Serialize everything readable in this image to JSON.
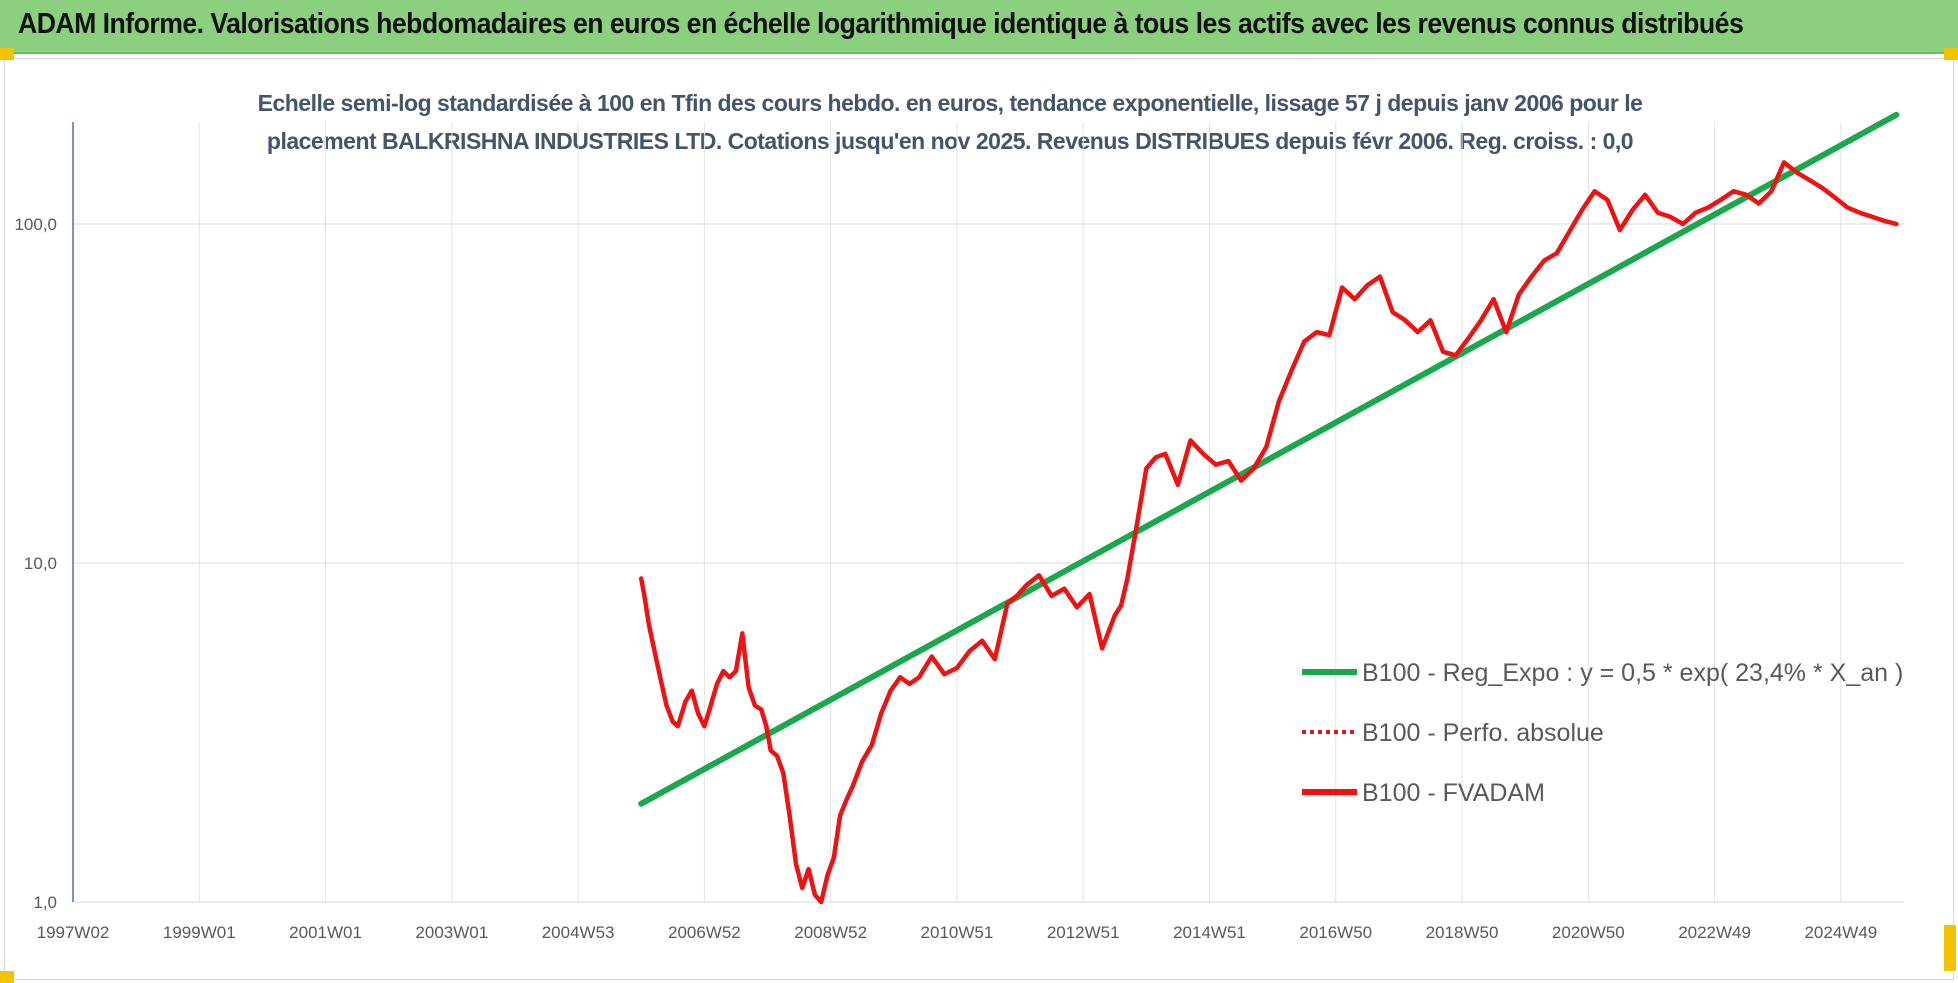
{
  "banner": {
    "title": "ADAM Informe. Valorisations hebdomadaires en euros en échelle logarithmique identique à tous les actifs avec les revenus connus distribués",
    "color": "#8ad07e"
  },
  "chart_data": {
    "type": "line",
    "title_lines": [
      "Echelle semi-log standardisée à 100 en Tfin des cours hebdo. en euros, tendance exponentielle, lissage 57 j depuis janv 2006 pour le",
      "placement BALKRISHNA INDUSTRIES LTD. Cotations jusqu'en nov 2025. Revenus DISTRIBUES depuis févr 2006. Reg. croiss. : 0,0"
    ],
    "y_scale": "log",
    "ylim": [
      1,
      200
    ],
    "y_ticks": [
      "1,0",
      "10,0",
      "100,0"
    ],
    "xlim": [
      1997.0,
      2026.0
    ],
    "x_ticks": [
      "1997W02",
      "1999W01",
      "2001W01",
      "2003W01",
      "2004W53",
      "2006W52",
      "2008W52",
      "2010W51",
      "2012W51",
      "2014W51",
      "2016W50",
      "2018W50",
      "2020W50",
      "2022W49",
      "2024W49"
    ],
    "grid": true,
    "legend_position": "right",
    "series": [
      {
        "name": "B100 - Reg_Expo : y = 0,5 * exp( 23,4% *  X_an )",
        "style": "solid",
        "color": "#1aa84c",
        "x": [
          2006.0,
          2025.88
        ],
        "y": [
          1.95,
          210
        ]
      },
      {
        "name": "B100 - Perfo. absolue",
        "style": "dotted",
        "color": "#e8141b",
        "x": [],
        "y": []
      },
      {
        "name": "B100 - FVADAM",
        "style": "solid",
        "color": "#ef1212",
        "x": [
          2006.0,
          2006.05,
          2006.12,
          2006.2,
          2006.3,
          2006.4,
          2006.5,
          2006.58,
          2006.7,
          2006.8,
          2006.9,
          2007.0,
          2007.1,
          2007.2,
          2007.3,
          2007.4,
          2007.5,
          2007.6,
          2007.7,
          2007.8,
          2007.9,
          2007.98,
          2008.05,
          2008.15,
          2008.25,
          2008.35,
          2008.45,
          2008.55,
          2008.65,
          2008.75,
          2008.85,
          2008.95,
          2009.05,
          2009.15,
          2009.25,
          2009.35,
          2009.5,
          2009.65,
          2009.8,
          2009.95,
          2010.1,
          2010.25,
          2010.4,
          2010.6,
          2010.8,
          2011.0,
          2011.2,
          2011.4,
          2011.6,
          2011.8,
          2011.95,
          2012.1,
          2012.3,
          2012.5,
          2012.7,
          2012.9,
          2013.1,
          2013.3,
          2013.5,
          2013.6,
          2013.7,
          2013.85,
          2014.0,
          2014.15,
          2014.3,
          2014.5,
          2014.7,
          2014.9,
          2015.1,
          2015.3,
          2015.5,
          2015.7,
          2015.9,
          2016.1,
          2016.3,
          2016.5,
          2016.7,
          2016.9,
          2017.1,
          2017.3,
          2017.5,
          2017.7,
          2017.9,
          2018.1,
          2018.3,
          2018.5,
          2018.7,
          2018.9,
          2019.1,
          2019.3,
          2019.5,
          2019.7,
          2019.9,
          2020.1,
          2020.3,
          2020.5,
          2020.7,
          2020.9,
          2021.1,
          2021.3,
          2021.5,
          2021.7,
          2021.9,
          2022.1,
          2022.3,
          2022.5,
          2022.7,
          2022.9,
          2023.1,
          2023.3,
          2023.5,
          2023.7,
          2023.9,
          2024.1,
          2024.3,
          2024.5,
          2024.7,
          2024.9,
          2025.1,
          2025.3,
          2025.5,
          2025.7,
          2025.88
        ],
        "y": [
          9.0,
          8.0,
          6.6,
          5.6,
          4.6,
          3.8,
          3.4,
          3.3,
          3.9,
          4.2,
          3.6,
          3.3,
          3.8,
          4.4,
          4.8,
          4.6,
          4.8,
          6.2,
          4.3,
          3.8,
          3.7,
          3.3,
          2.8,
          2.7,
          2.4,
          1.8,
          1.3,
          1.1,
          1.25,
          1.05,
          1.0,
          1.2,
          1.35,
          1.8,
          2.0,
          2.2,
          2.6,
          2.9,
          3.6,
          4.2,
          4.6,
          4.4,
          4.6,
          5.3,
          4.7,
          4.9,
          5.5,
          5.9,
          5.2,
          7.6,
          8.0,
          8.6,
          9.2,
          8.0,
          8.4,
          7.4,
          8.1,
          5.6,
          7.0,
          7.5,
          9.0,
          13.0,
          19.0,
          20.5,
          21.0,
          17.0,
          23.0,
          21.0,
          19.5,
          20.0,
          17.5,
          19.0,
          22.0,
          30.0,
          37.0,
          45.0,
          48.0,
          47.0,
          65.0,
          60.0,
          66.0,
          70.0,
          55.0,
          52.0,
          48.0,
          52.0,
          42.0,
          41.0,
          46.0,
          52.0,
          60.0,
          48.0,
          62.0,
          70.0,
          78.0,
          82.0,
          95.0,
          110.0,
          125.0,
          118.0,
          96.0,
          110.0,
          122.0,
          108.0,
          105.0,
          100.0,
          108.0,
          112.0,
          118.0,
          125.0,
          122.0,
          115.0,
          125.0,
          152.0,
          142.0,
          135.0,
          128.0,
          120.0,
          112.0,
          108.0,
          105.0,
          102.0,
          100.0
        ]
      }
    ]
  }
}
